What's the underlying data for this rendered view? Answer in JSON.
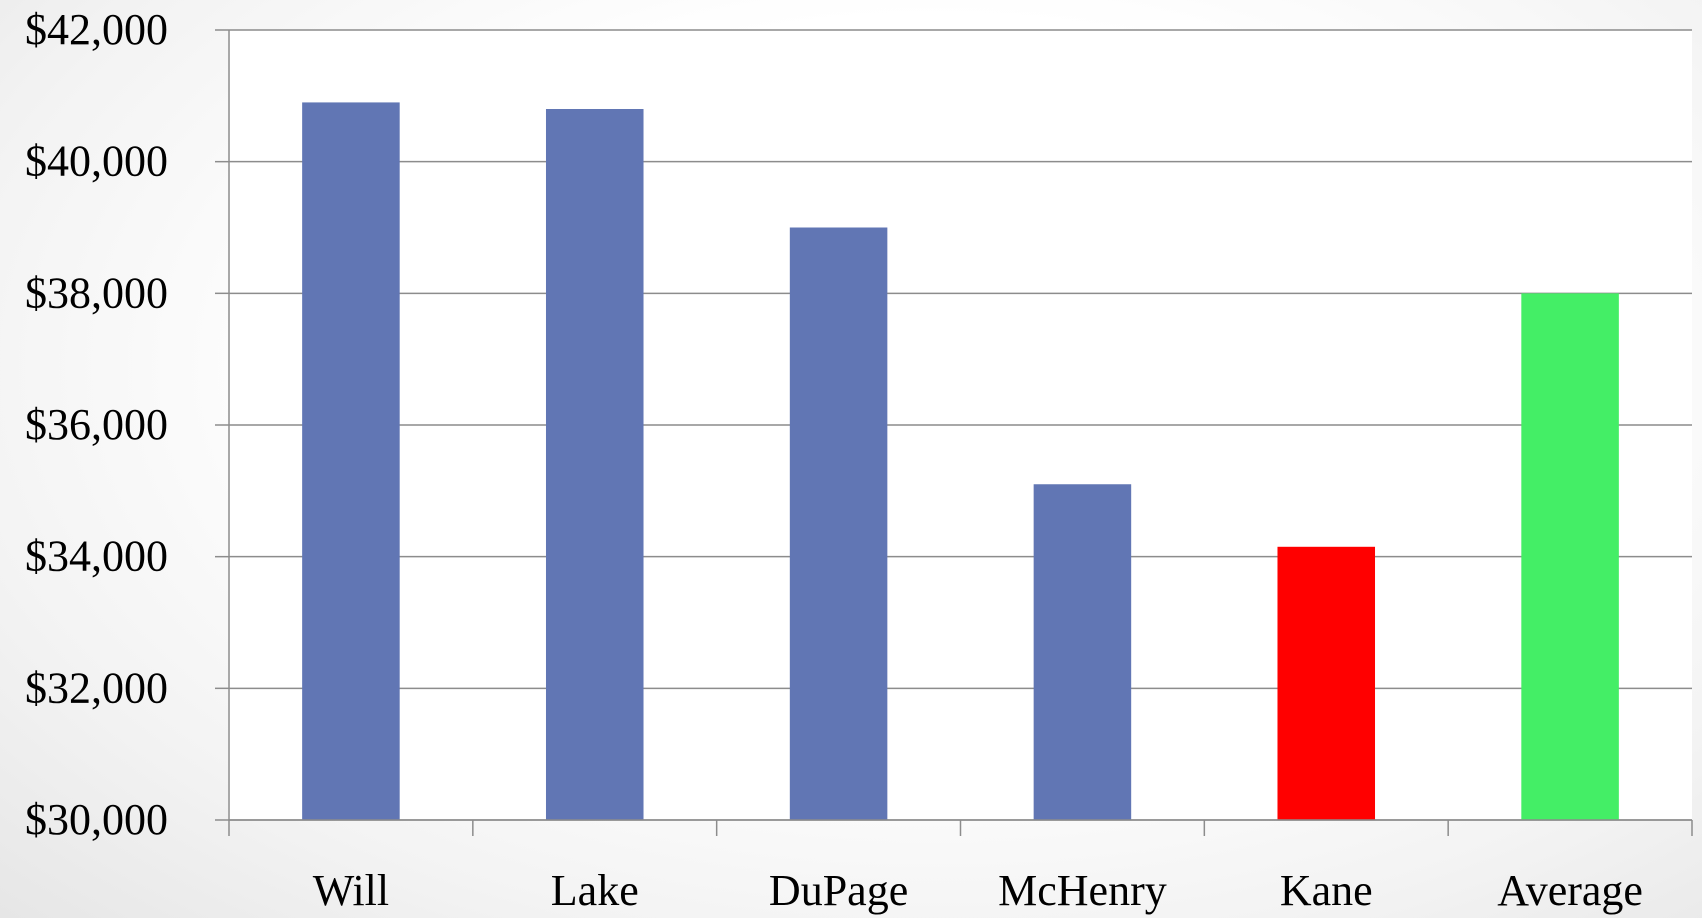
{
  "chart_data": {
    "type": "bar",
    "title": "",
    "xlabel": "",
    "ylabel": "",
    "categories": [
      "Will",
      "Lake",
      "DuPage",
      "McHenry",
      "Kane",
      "Average"
    ],
    "values": [
      40900,
      40800,
      39000,
      35100,
      34150,
      38000
    ],
    "bar_colors": [
      "#6176b4",
      "#6176b4",
      "#6176b4",
      "#6176b4",
      "#ff0000",
      "#44ee66"
    ],
    "ylim": [
      30000,
      42000
    ],
    "yticks": [
      30000,
      32000,
      34000,
      36000,
      38000,
      40000,
      42000
    ],
    "ytick_labels": [
      "$30,000",
      "$32,000",
      "$34,000",
      "$36,000",
      "$38,000",
      "$40,000",
      "$42,000"
    ],
    "grid": true,
    "legend": "none"
  }
}
